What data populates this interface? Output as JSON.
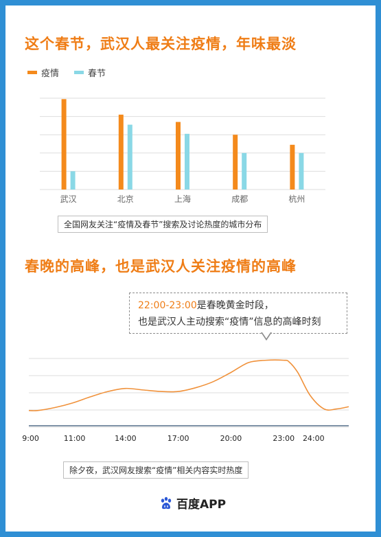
{
  "titles": {
    "bar": "这个春节，武汉人最关注疫情，年味最淡",
    "line": "春晚的高峰，也是武汉人关注疫情的高峰"
  },
  "colors": {
    "accent": "#ef7d16",
    "series_epidemic": "#f48a1c",
    "series_festival": "#8ad8e6",
    "line": "#f0913a",
    "frame": "#2f8fd4",
    "axis": "#546e8a",
    "grid": "#dddddd"
  },
  "callout": {
    "time": "22:00-23:00",
    "line1_rest": "是春晚黄金时段，",
    "line2": "也是武汉人主动搜索“疫情”信息的高峰时刻"
  },
  "captions": {
    "bar": "全国网友关注“疫情及春节”搜索及讨论热度的城市分布",
    "line": "除夕夜，武汉网友搜索“疫情”相关内容实时热度"
  },
  "logo": {
    "text": "百度APP",
    "icon": "baidu-paw-icon"
  },
  "chart_data": [
    {
      "type": "bar",
      "categories": [
        "武汉",
        "北京",
        "上海",
        "成都",
        "杭州"
      ],
      "series": [
        {
          "name": "疫情",
          "values": [
            99,
            82,
            74,
            60,
            49
          ]
        },
        {
          "name": "春节",
          "values": [
            20,
            71,
            61,
            40,
            40
          ]
        }
      ],
      "ylim": [
        0,
        100
      ],
      "grid": true,
      "legend": "top-left"
    },
    {
      "type": "line",
      "x_ticks": [
        "9:00",
        "11:00",
        "14:00",
        "17:00",
        "20:00",
        "23:00",
        "24:00"
      ],
      "points": [
        [
          8.5,
          20
        ],
        [
          9.0,
          20
        ],
        [
          10.0,
          24
        ],
        [
          11.0,
          30
        ],
        [
          12.0,
          38
        ],
        [
          13.0,
          45
        ],
        [
          14.0,
          49
        ],
        [
          15.0,
          47
        ],
        [
          16.0,
          45
        ],
        [
          17.0,
          45
        ],
        [
          18.0,
          50
        ],
        [
          19.0,
          58
        ],
        [
          20.0,
          70
        ],
        [
          21.0,
          83
        ],
        [
          22.0,
          86
        ],
        [
          23.0,
          86
        ],
        [
          23.3,
          84
        ],
        [
          23.8,
          70
        ],
        [
          24.5,
          40
        ],
        [
          25.3,
          22
        ],
        [
          26.0,
          22
        ],
        [
          26.7,
          25
        ]
      ],
      "xlim": [
        8.5,
        26.7
      ],
      "ylim": [
        0,
        110
      ],
      "grid": true
    }
  ]
}
